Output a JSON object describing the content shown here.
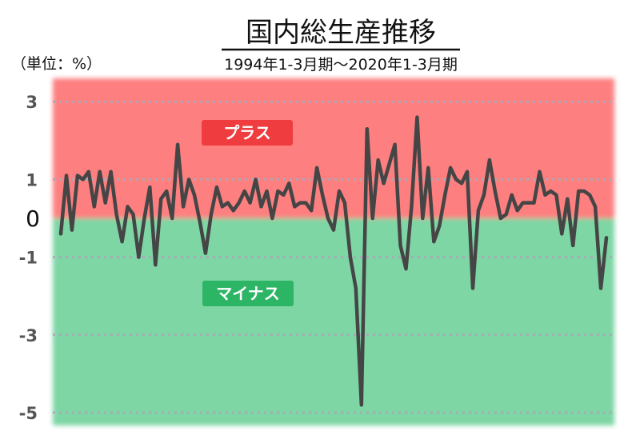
{
  "title": "国内総生産推移",
  "subtitle": "1994年1-3月期～2020年1-3月期",
  "unit_label": "（単位：%）",
  "zones": {
    "plus_label": "プラス",
    "minus_label": "マイナス",
    "plus_color": "#fd7f80",
    "minus_color": "#7dd6a4",
    "plus_label_bg": "#ee3c3f",
    "minus_label_bg": "#2cb565"
  },
  "colors": {
    "line": "#454545",
    "grid": "#a9a9b8"
  },
  "chart_data": {
    "type": "line",
    "title": "国内総生産推移",
    "subtitle": "1994年1-3月期～2020年1-3月期",
    "ylabel": "（単位：%）",
    "ylim": [
      -5.3,
      3.5
    ],
    "y_ticks": [
      3,
      1,
      0,
      -1,
      -3,
      -5
    ],
    "y_tick_labels": [
      "3",
      "1",
      "0",
      "-1",
      "-3",
      "-5"
    ],
    "zero_line_at": 0,
    "grid": true,
    "x_start": "1994年1-3月期",
    "x_end": "2020年1-3月期",
    "series": [
      {
        "values": [
          -0.4,
          1.1,
          -0.3,
          1.1,
          1.0,
          1.2,
          0.3,
          1.2,
          0.4,
          1.2,
          0.1,
          -0.6,
          0.3,
          0.1,
          -1.0,
          0.0,
          0.8,
          -1.2,
          0.5,
          0.7,
          0.0,
          1.9,
          0.3,
          1.0,
          0.6,
          -0.1,
          -0.9,
          0.1,
          0.8,
          0.3,
          0.4,
          0.2,
          0.4,
          0.7,
          0.4,
          1.0,
          0.3,
          0.7,
          0.0,
          0.7,
          0.6,
          0.9,
          0.3,
          0.4,
          0.4,
          0.2,
          1.3,
          0.6,
          0.0,
          -0.3,
          0.7,
          0.4,
          -1.0,
          -1.8,
          -4.8,
          2.3,
          0.0,
          1.5,
          0.9,
          1.4,
          1.9,
          -0.7,
          -1.3,
          0.3,
          2.6,
          0.0,
          1.3,
          -0.6,
          -0.2,
          0.6,
          1.3,
          1.0,
          0.9,
          1.2,
          -1.8,
          0.2,
          0.6,
          1.5,
          0.7,
          0.0,
          0.1,
          0.6,
          0.2,
          0.4,
          0.4,
          0.4,
          1.2,
          0.6,
          0.7,
          0.6,
          -0.4,
          0.5,
          -0.7,
          0.7,
          0.7,
          0.6,
          0.3,
          -1.8,
          -0.5
        ]
      }
    ]
  }
}
